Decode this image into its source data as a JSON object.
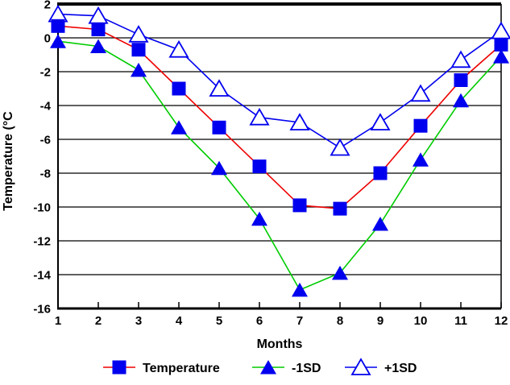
{
  "chart_data": {
    "type": "line",
    "title": "",
    "xlabel": "Months",
    "ylabel": "Temperature (°C",
    "categories": [
      "1",
      "2",
      "3",
      "4",
      "5",
      "6",
      "7",
      "8",
      "9",
      "10",
      "11",
      "12"
    ],
    "x": [
      1,
      2,
      3,
      4,
      5,
      6,
      7,
      8,
      9,
      10,
      11,
      12
    ],
    "ylim": [
      -16,
      2
    ],
    "y_ticks": [
      2,
      0,
      -2,
      -4,
      -6,
      -8,
      -10,
      -12,
      -14,
      -16
    ],
    "grid": true,
    "legend_position": "bottom",
    "series": [
      {
        "name": "Temperature",
        "line_color": "#ee0000",
        "marker": "square",
        "marker_color": "#0000ee",
        "values": [
          0.7,
          0.5,
          -0.7,
          -3.0,
          -5.3,
          -7.6,
          -9.9,
          -10.1,
          -8.0,
          -5.2,
          -2.5,
          -0.4
        ]
      },
      {
        "name": "-1SD",
        "line_color": "#00cc00",
        "marker": "triangle-filled",
        "marker_color": "#0000ee",
        "values": [
          -0.2,
          -0.5,
          -1.9,
          -5.3,
          -7.7,
          -10.7,
          -14.9,
          -13.9,
          -11.0,
          -7.2,
          -3.7,
          -1.1
        ]
      },
      {
        "name": "+1SD",
        "line_color": "#0000ee",
        "marker": "triangle-open",
        "marker_color": "#0000ee",
        "values": [
          1.4,
          1.3,
          0.2,
          -0.7,
          -3.0,
          -4.7,
          -5.0,
          -6.5,
          -5.0,
          -3.3,
          -1.3,
          0.4
        ]
      }
    ],
    "colors": {
      "axis": "#000000",
      "grid": "#000000",
      "background": "#ffffff",
      "marker_blue": "#0000ee",
      "temperature_red": "#ee0000",
      "sd_green": "#00cc00",
      "sd_blue": "#0000ee"
    }
  }
}
